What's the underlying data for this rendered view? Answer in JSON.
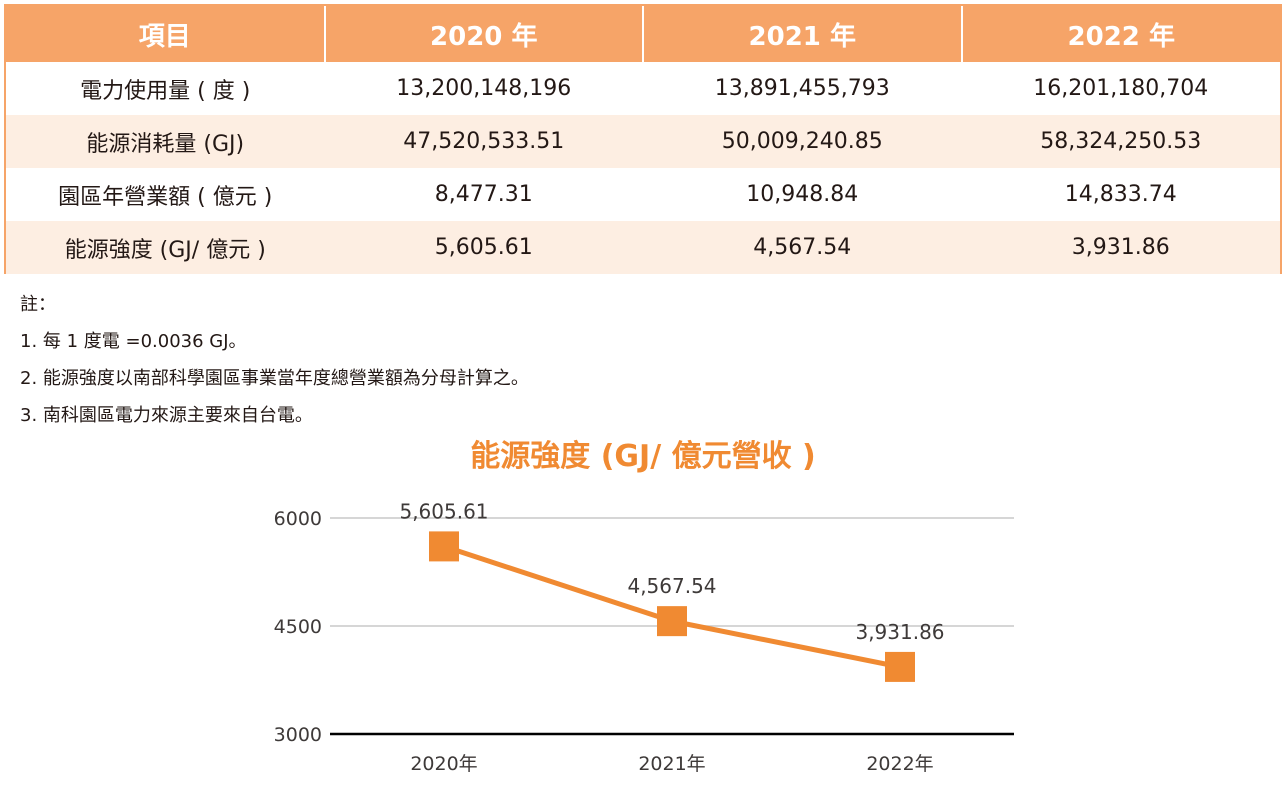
{
  "table": {
    "headers": [
      "項目",
      "2020 年",
      "2021 年",
      "2022 年"
    ],
    "rows": [
      {
        "label": "電力使用量 ( 度 )",
        "values": [
          "13,200,148,196",
          "13,891,455,793",
          "16,201,180,704"
        ]
      },
      {
        "label": "能源消耗量 (GJ)",
        "values": [
          "47,520,533.51",
          "50,009,240.85",
          "58,324,250.53"
        ]
      },
      {
        "label": "園區年營業額 ( 億元 )",
        "values": [
          "8,477.31",
          "10,948.84",
          "14,833.74"
        ]
      },
      {
        "label": "能源強度 (GJ/ 億元 )",
        "values": [
          "5,605.61",
          "4,567.54",
          "3,931.86"
        ]
      }
    ]
  },
  "notes": {
    "title": "註：",
    "items": [
      "1. 每 1 度電 =0.0036 GJ。",
      "2. 能源強度以南部科學園區事業當年度總營業額為分母計算之。",
      "3. 南科園區電力來源主要來自台電。"
    ]
  },
  "colors": {
    "accent": "#f08a32",
    "header_bg": "#f6a468",
    "row_alt_bg": "#fdeee2"
  },
  "chart_data": {
    "type": "line",
    "title": "能源強度 (GJ/ 億元營收 )",
    "categories": [
      "2020年",
      "2021年",
      "2022年"
    ],
    "values": [
      5605.61,
      4567.54,
      3931.86
    ],
    "data_labels": [
      "5,605.61",
      "4,567.54",
      "3,931.86"
    ],
    "yticks": [
      3000,
      4500,
      6000
    ],
    "ylim": [
      3000,
      6000
    ],
    "xlabel": "",
    "ylabel": "",
    "grid": true,
    "marker": "square"
  }
}
